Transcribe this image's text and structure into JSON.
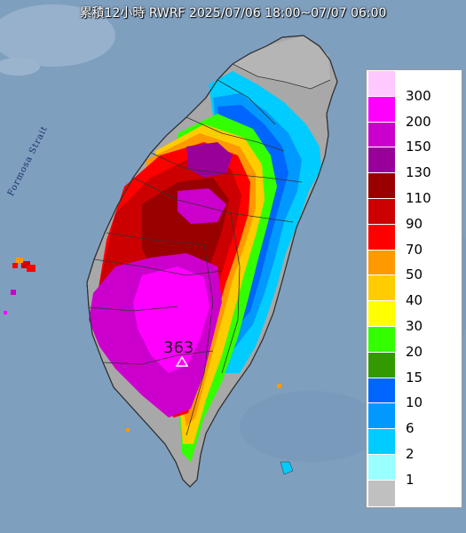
{
  "title": "累積12小時 RWRF 2025/07/06 18:00~07/07 06:00",
  "map": {
    "sea_label": "Formosa Strait",
    "max_label": "363",
    "max_marker": "triangle-marker",
    "colors": {
      "sea": "#7f9fbf",
      "land_outline": "#303030"
    }
  },
  "legend": {
    "items": [
      {
        "label": "300",
        "color": "#ffc8ff"
      },
      {
        "label": "200",
        "color": "#ff00ff"
      },
      {
        "label": "150",
        "color": "#cc00cc"
      },
      {
        "label": "130",
        "color": "#990099"
      },
      {
        "label": "110",
        "color": "#990000"
      },
      {
        "label": "90",
        "color": "#cc0000"
      },
      {
        "label": "70",
        "color": "#ff0000"
      },
      {
        "label": "50",
        "color": "#ff9900"
      },
      {
        "label": "40",
        "color": "#ffcc00"
      },
      {
        "label": "30",
        "color": "#ffff00"
      },
      {
        "label": "20",
        "color": "#33ff00"
      },
      {
        "label": "15",
        "color": "#339900"
      },
      {
        "label": "10",
        "color": "#0066ff"
      },
      {
        "label": "6",
        "color": "#0099ff"
      },
      {
        "label": "2",
        "color": "#00ccff"
      },
      {
        "label": "1",
        "color": "#99ffff"
      },
      {
        "label": "",
        "color": "#c0c0c0"
      }
    ]
  }
}
